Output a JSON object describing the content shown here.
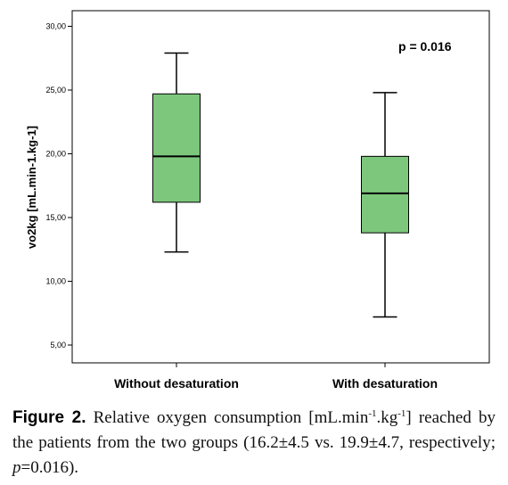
{
  "chart_data": {
    "type": "box",
    "ylabel": "vo2kg [mL.min-1.kg-1]",
    "ylim": [
      4,
      31
    ],
    "yticks": [
      5,
      10,
      15,
      20,
      25,
      30
    ],
    "ytick_labels": [
      "5,00",
      "10,00",
      "15,00",
      "20,00",
      "25,00",
      "30,00"
    ],
    "categories": [
      "Without desaturation",
      "With desaturation"
    ],
    "boxes": [
      {
        "category": "Without desaturation",
        "min": 12.3,
        "q1": 16.2,
        "median": 19.8,
        "q3": 24.7,
        "max": 27.9
      },
      {
        "category": "With desaturation",
        "min": 7.2,
        "q1": 13.8,
        "median": 16.9,
        "q3": 19.8,
        "max": 24.8
      }
    ],
    "annotation": "p = 0.016",
    "box_color": "#7dc77d",
    "grid": false
  },
  "caption": {
    "label": "Figure 2.",
    "part1": " Relative oxygen consumption [mL.min",
    "sup1": "-1",
    "part2": ".kg",
    "sup2": "-1",
    "part3": "] reached by the patients from the two groups (16.2±4.5 vs. 19.9±4.7, respectively; ",
    "p_italic": "p",
    "part4": "=0.016)."
  }
}
